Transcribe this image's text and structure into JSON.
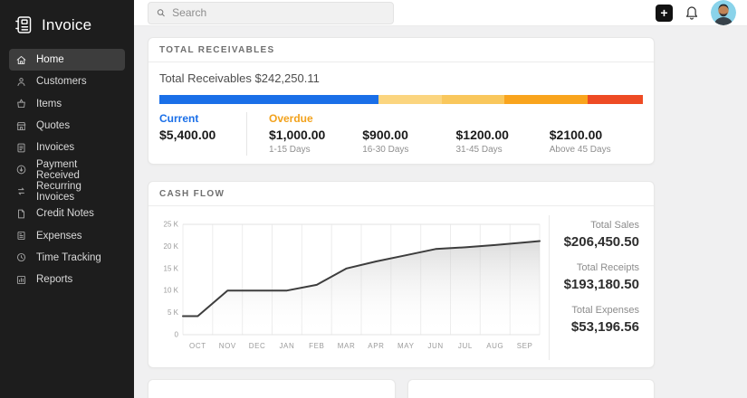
{
  "app": {
    "name": "Invoice"
  },
  "topbar": {
    "search_placeholder": "Search",
    "add_label": "+"
  },
  "sidebar": {
    "items": [
      {
        "label": "Home",
        "icon": "home-icon",
        "active": true
      },
      {
        "label": "Customers",
        "icon": "customers-icon",
        "active": false
      },
      {
        "label": "Items",
        "icon": "items-icon",
        "active": false
      },
      {
        "label": "Quotes",
        "icon": "quotes-icon",
        "active": false
      },
      {
        "label": "Invoices",
        "icon": "invoices-icon",
        "active": false
      },
      {
        "label": "Payment Received",
        "icon": "payment-received-icon",
        "active": false
      },
      {
        "label": "Recurring Invoices",
        "icon": "recurring-invoices-icon",
        "active": false
      },
      {
        "label": "Credit Notes",
        "icon": "credit-notes-icon",
        "active": false
      },
      {
        "label": "Expenses",
        "icon": "expenses-icon",
        "active": false
      },
      {
        "label": "Time Tracking",
        "icon": "time-tracking-icon",
        "active": false
      },
      {
        "label": "Reports",
        "icon": "reports-icon",
        "active": false
      }
    ]
  },
  "receivables": {
    "section_title": "TOTAL RECEIVABLES",
    "summary_label": "Total Receivables",
    "summary_amount": "$242,250.11",
    "bar_segments": [
      {
        "name": "current",
        "color": "#1a6fe8",
        "pct": 45.4
      },
      {
        "name": "overdue-1-15",
        "color": "#fbd57f",
        "pct": 13.1
      },
      {
        "name": "overdue-16-30",
        "color": "#f9c75c",
        "pct": 12.8
      },
      {
        "name": "overdue-31-45",
        "color": "#f9a41d",
        "pct": 17.2
      },
      {
        "name": "overdue-above-45",
        "color": "#ee4b24",
        "pct": 11.5
      }
    ],
    "columns": [
      {
        "label": "Current",
        "label_color": "#1a6fe8",
        "amount": "$5,400.00",
        "sub": ""
      },
      {
        "label": "Overdue",
        "label_color": "#f2a21d",
        "amount": "$1,000.00",
        "sub": "1-15 Days"
      },
      {
        "label": "",
        "label_color": "",
        "amount": "$900.00",
        "sub": "16-30 Days"
      },
      {
        "label": "",
        "label_color": "",
        "amount": "$1200.00",
        "sub": "31-45 Days"
      },
      {
        "label": "",
        "label_color": "",
        "amount": "$2100.00",
        "sub": "Above 45 Days"
      }
    ]
  },
  "cashflow": {
    "section_title": "CASH FLOW",
    "stats": [
      {
        "label": "Total Sales",
        "value": "$206,450.50"
      },
      {
        "label": "Total Receipts",
        "value": "$193,180.50"
      },
      {
        "label": "Total Expenses",
        "value": "$53,196.56"
      }
    ]
  },
  "chart_data": {
    "type": "area",
    "title": "Cash Flow",
    "x": [
      "OCT",
      "NOV",
      "DEC",
      "JAN",
      "FEB",
      "MAR",
      "APR",
      "MAY",
      "JUN",
      "JUL",
      "AUG",
      "SEP"
    ],
    "series": [
      {
        "name": "Cash Flow",
        "values": [
          4.2,
          10,
          10,
          10,
          11.3,
          15,
          16.6,
          18,
          19.4,
          19.8,
          20.3,
          20.9
        ]
      }
    ],
    "edge_start": 4.2,
    "edge_end": 21.2,
    "units": "K",
    "ylim": [
      0,
      25
    ],
    "ytick_values": [
      0,
      5,
      10,
      15,
      20,
      25
    ],
    "ytick_labels": [
      "0",
      "5 K",
      "10 K",
      "15 K",
      "20 K",
      "25 K"
    ],
    "xlabel": "",
    "ylabel": "",
    "grid": "vertical",
    "legend": "none",
    "line_color": "#3d3d3d",
    "area_fade_from": "#bfbfbf"
  }
}
